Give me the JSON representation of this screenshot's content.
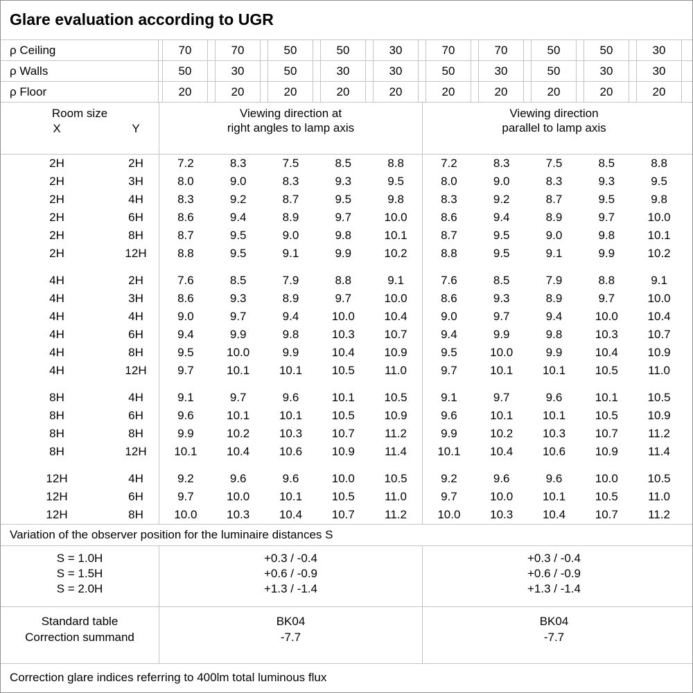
{
  "title": "Glare evaluation according to UGR",
  "reflectance_rows": [
    {
      "label": "ρ Ceiling",
      "values": [
        "70",
        "70",
        "50",
        "50",
        "30",
        "70",
        "70",
        "50",
        "50",
        "30"
      ]
    },
    {
      "label": "ρ Walls",
      "values": [
        "50",
        "30",
        "50",
        "30",
        "30",
        "50",
        "30",
        "50",
        "30",
        "30"
      ]
    },
    {
      "label": "ρ Floor",
      "values": [
        "20",
        "20",
        "20",
        "20",
        "20",
        "20",
        "20",
        "20",
        "20",
        "20"
      ]
    }
  ],
  "room_size": {
    "title": "Room size",
    "x": "X",
    "y": "Y"
  },
  "sections": {
    "right_angles": {
      "line1": "Viewing direction at",
      "line2": "right angles to lamp axis"
    },
    "parallel": {
      "line1": "Viewing direction",
      "line2": "parallel to lamp axis"
    }
  },
  "ugr_groups": [
    {
      "rows": [
        {
          "x": "2H",
          "y": "2H",
          "right_angles": [
            "7.2",
            "8.3",
            "7.5",
            "8.5",
            "8.8"
          ],
          "parallel": [
            "7.2",
            "8.3",
            "7.5",
            "8.5",
            "8.8"
          ]
        },
        {
          "x": "2H",
          "y": "3H",
          "right_angles": [
            "8.0",
            "9.0",
            "8.3",
            "9.3",
            "9.5"
          ],
          "parallel": [
            "8.0",
            "9.0",
            "8.3",
            "9.3",
            "9.5"
          ]
        },
        {
          "x": "2H",
          "y": "4H",
          "right_angles": [
            "8.3",
            "9.2",
            "8.7",
            "9.5",
            "9.8"
          ],
          "parallel": [
            "8.3",
            "9.2",
            "8.7",
            "9.5",
            "9.8"
          ]
        },
        {
          "x": "2H",
          "y": "6H",
          "right_angles": [
            "8.6",
            "9.4",
            "8.9",
            "9.7",
            "10.0"
          ],
          "parallel": [
            "8.6",
            "9.4",
            "8.9",
            "9.7",
            "10.0"
          ]
        },
        {
          "x": "2H",
          "y": "8H",
          "right_angles": [
            "8.7",
            "9.5",
            "9.0",
            "9.8",
            "10.1"
          ],
          "parallel": [
            "8.7",
            "9.5",
            "9.0",
            "9.8",
            "10.1"
          ]
        },
        {
          "x": "2H",
          "y": "12H",
          "right_angles": [
            "8.8",
            "9.5",
            "9.1",
            "9.9",
            "10.2"
          ],
          "parallel": [
            "8.8",
            "9.5",
            "9.1",
            "9.9",
            "10.2"
          ]
        }
      ]
    },
    {
      "rows": [
        {
          "x": "4H",
          "y": "2H",
          "right_angles": [
            "7.6",
            "8.5",
            "7.9",
            "8.8",
            "9.1"
          ],
          "parallel": [
            "7.6",
            "8.5",
            "7.9",
            "8.8",
            "9.1"
          ]
        },
        {
          "x": "4H",
          "y": "3H",
          "right_angles": [
            "8.6",
            "9.3",
            "8.9",
            "9.7",
            "10.0"
          ],
          "parallel": [
            "8.6",
            "9.3",
            "8.9",
            "9.7",
            "10.0"
          ]
        },
        {
          "x": "4H",
          "y": "4H",
          "right_angles": [
            "9.0",
            "9.7",
            "9.4",
            "10.0",
            "10.4"
          ],
          "parallel": [
            "9.0",
            "9.7",
            "9.4",
            "10.0",
            "10.4"
          ]
        },
        {
          "x": "4H",
          "y": "6H",
          "right_angles": [
            "9.4",
            "9.9",
            "9.8",
            "10.3",
            "10.7"
          ],
          "parallel": [
            "9.4",
            "9.9",
            "9.8",
            "10.3",
            "10.7"
          ]
        },
        {
          "x": "4H",
          "y": "8H",
          "right_angles": [
            "9.5",
            "10.0",
            "9.9",
            "10.4",
            "10.9"
          ],
          "parallel": [
            "9.5",
            "10.0",
            "9.9",
            "10.4",
            "10.9"
          ]
        },
        {
          "x": "4H",
          "y": "12H",
          "right_angles": [
            "9.7",
            "10.1",
            "10.1",
            "10.5",
            "11.0"
          ],
          "parallel": [
            "9.7",
            "10.1",
            "10.1",
            "10.5",
            "11.0"
          ]
        }
      ]
    },
    {
      "rows": [
        {
          "x": "8H",
          "y": "4H",
          "right_angles": [
            "9.1",
            "9.7",
            "9.6",
            "10.1",
            "10.5"
          ],
          "parallel": [
            "9.1",
            "9.7",
            "9.6",
            "10.1",
            "10.5"
          ]
        },
        {
          "x": "8H",
          "y": "6H",
          "right_angles": [
            "9.6",
            "10.1",
            "10.1",
            "10.5",
            "10.9"
          ],
          "parallel": [
            "9.6",
            "10.1",
            "10.1",
            "10.5",
            "10.9"
          ]
        },
        {
          "x": "8H",
          "y": "8H",
          "right_angles": [
            "9.9",
            "10.2",
            "10.3",
            "10.7",
            "11.2"
          ],
          "parallel": [
            "9.9",
            "10.2",
            "10.3",
            "10.7",
            "11.2"
          ]
        },
        {
          "x": "8H",
          "y": "12H",
          "right_angles": [
            "10.1",
            "10.4",
            "10.6",
            "10.9",
            "11.4"
          ],
          "parallel": [
            "10.1",
            "10.4",
            "10.6",
            "10.9",
            "11.4"
          ]
        }
      ]
    },
    {
      "rows": [
        {
          "x": "12H",
          "y": "4H",
          "right_angles": [
            "9.2",
            "9.6",
            "9.6",
            "10.0",
            "10.5"
          ],
          "parallel": [
            "9.2",
            "9.6",
            "9.6",
            "10.0",
            "10.5"
          ]
        },
        {
          "x": "12H",
          "y": "6H",
          "right_angles": [
            "9.7",
            "10.0",
            "10.1",
            "10.5",
            "11.0"
          ],
          "parallel": [
            "9.7",
            "10.0",
            "10.1",
            "10.5",
            "11.0"
          ]
        },
        {
          "x": "12H",
          "y": "8H",
          "right_angles": [
            "10.0",
            "10.3",
            "10.4",
            "10.7",
            "11.2"
          ],
          "parallel": [
            "10.0",
            "10.3",
            "10.4",
            "10.7",
            "11.2"
          ]
        }
      ]
    }
  ],
  "variation": {
    "note": "Variation of the observer position for the luminaire distances S",
    "rows": [
      {
        "label": "S = 1.0H",
        "right_angles": "+0.3 / -0.4",
        "parallel": "+0.3 / -0.4"
      },
      {
        "label": "S = 1.5H",
        "right_angles": "+0.6 / -0.9",
        "parallel": "+0.6 / -0.9"
      },
      {
        "label": "S = 2.0H",
        "right_angles": "+1.3 / -1.4",
        "parallel": "+1.3 / -1.4"
      }
    ]
  },
  "standard": {
    "rows": [
      {
        "label": "Standard table",
        "right_angles": "BK04",
        "parallel": "BK04"
      },
      {
        "label": "Correction summand",
        "right_angles": "-7.7",
        "parallel": "-7.7"
      }
    ]
  },
  "footer": "Correction glare indices referring to 400lm total luminous flux",
  "colors": {
    "grid_line": "#c4c4c4",
    "outer_border": "#8f8f8f",
    "text": "#000000",
    "background": "#ffffff"
  }
}
